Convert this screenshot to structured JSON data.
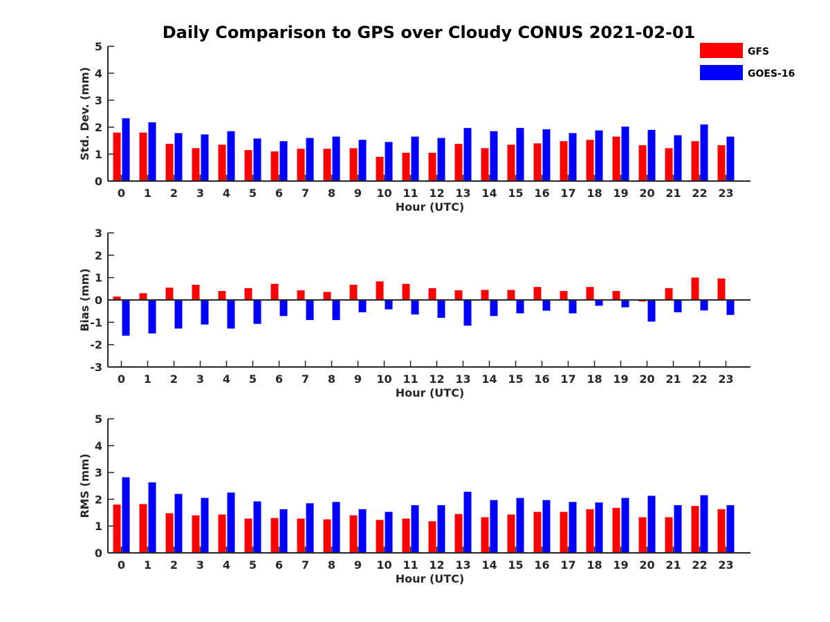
{
  "chart_data": {
    "type": "bar",
    "title": "Daily Comparison to GPS over Cloudy CONUS 2021-02-01",
    "legend": {
      "placement": "top-right",
      "entries": [
        {
          "name": "GFS",
          "color": "#ff0000"
        },
        {
          "name": "GOES-16",
          "color": "#0000ff"
        }
      ]
    },
    "categories": [
      "0",
      "1",
      "2",
      "3",
      "4",
      "5",
      "6",
      "7",
      "8",
      "9",
      "10",
      "11",
      "12",
      "13",
      "14",
      "15",
      "16",
      "17",
      "18",
      "19",
      "20",
      "21",
      "22",
      "23"
    ],
    "panels": [
      {
        "id": "stddev",
        "xlabel": "Hour (UTC)",
        "ylabel": "Std. Dev. (mm)",
        "ylim": [
          0,
          5
        ],
        "yticks": [
          0,
          1,
          2,
          3,
          4,
          5
        ],
        "series": [
          {
            "name": "GFS",
            "color": "#ff0000",
            "values": [
              1.8,
              1.8,
              1.38,
              1.22,
              1.35,
              1.15,
              1.1,
              1.2,
              1.2,
              1.22,
              0.9,
              1.05,
              1.05,
              1.38,
              1.22,
              1.35,
              1.4,
              1.48,
              1.53,
              1.65,
              1.33,
              1.22,
              1.48,
              1.33
            ]
          },
          {
            "name": "GOES-16",
            "color": "#0000ff",
            "values": [
              2.33,
              2.18,
              1.78,
              1.73,
              1.85,
              1.58,
              1.48,
              1.6,
              1.65,
              1.53,
              1.45,
              1.65,
              1.6,
              1.97,
              1.85,
              1.97,
              1.92,
              1.78,
              1.88,
              2.02,
              1.9,
              1.7,
              2.1,
              1.65
            ]
          }
        ]
      },
      {
        "id": "bias",
        "xlabel": "Hour (UTC)",
        "ylabel": "Bias (mm)",
        "ylim": [
          -3,
          3
        ],
        "yticks": [
          -3,
          -2,
          -1,
          0,
          1,
          2,
          3
        ],
        "series": [
          {
            "name": "GFS",
            "color": "#ff0000",
            "values": [
              0.15,
              0.3,
              0.55,
              0.68,
              0.4,
              0.53,
              0.72,
              0.43,
              0.36,
              0.68,
              0.83,
              0.72,
              0.53,
              0.43,
              0.45,
              0.45,
              0.58,
              0.4,
              0.58,
              0.4,
              -0.07,
              0.53,
              1.0,
              0.96
            ]
          },
          {
            "name": "GOES-16",
            "color": "#0000ff",
            "values": [
              -1.6,
              -1.5,
              -1.28,
              -1.1,
              -1.28,
              -1.07,
              -0.72,
              -0.9,
              -0.9,
              -0.55,
              -0.42,
              -0.65,
              -0.8,
              -1.15,
              -0.72,
              -0.6,
              -0.48,
              -0.6,
              -0.26,
              -0.33,
              -0.97,
              -0.55,
              -0.47,
              -0.67
            ]
          }
        ]
      },
      {
        "id": "rms",
        "xlabel": "Hour (UTC)",
        "ylabel": "RMS (mm)",
        "ylim": [
          0,
          5
        ],
        "yticks": [
          0,
          1,
          2,
          3,
          4,
          5
        ],
        "series": [
          {
            "name": "GFS",
            "color": "#ff0000",
            "values": [
              1.8,
              1.82,
              1.48,
              1.4,
              1.43,
              1.28,
              1.3,
              1.28,
              1.25,
              1.4,
              1.23,
              1.28,
              1.18,
              1.45,
              1.33,
              1.43,
              1.53,
              1.53,
              1.63,
              1.68,
              1.33,
              1.33,
              1.75,
              1.63
            ]
          },
          {
            "name": "GOES-16",
            "color": "#0000ff",
            "values": [
              2.82,
              2.63,
              2.2,
              2.05,
              2.25,
              1.92,
              1.63,
              1.85,
              1.9,
              1.63,
              1.53,
              1.78,
              1.78,
              2.28,
              1.97,
              2.05,
              1.97,
              1.9,
              1.88,
              2.05,
              2.13,
              1.78,
              2.15,
              1.78
            ]
          }
        ]
      }
    ]
  }
}
